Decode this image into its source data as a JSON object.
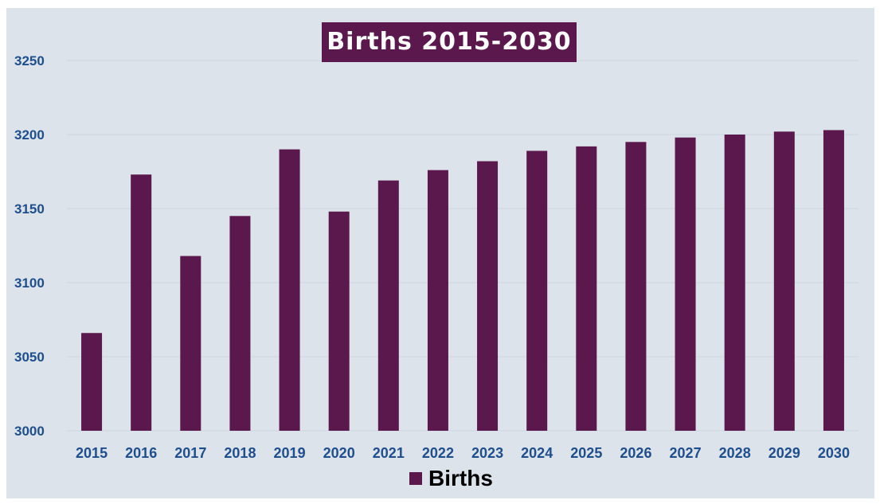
{
  "chart_data": {
    "type": "bar",
    "title": "Births 2015-2030",
    "categories": [
      "2015",
      "2016",
      "2017",
      "2018",
      "2019",
      "2020",
      "2021",
      "2022",
      "2023",
      "2024",
      "2025",
      "2026",
      "2027",
      "2028",
      "2029",
      "2030"
    ],
    "series": [
      {
        "name": "Births",
        "values": [
          3066,
          3173,
          3118,
          3145,
          3190,
          3148,
          3169,
          3176,
          3182,
          3189,
          3192,
          3195,
          3198,
          3200,
          3202,
          3203
        ],
        "color": "#5b184c"
      }
    ],
    "ylim": [
      3000,
      3250
    ],
    "yticks": [
      3000,
      3050,
      3100,
      3150,
      3200,
      3250
    ],
    "grid": true,
    "legend_position": "bottom"
  },
  "colors": {
    "background": "#dce3eb",
    "bar": "#5b184c",
    "tick_text": "#1f4e8c",
    "gridline": "#cfd8e2"
  }
}
